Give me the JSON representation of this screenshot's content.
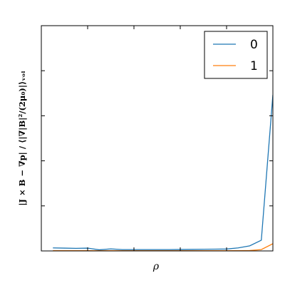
{
  "chart_data": {
    "type": "line",
    "title": "",
    "xlabel": "ρ",
    "ylabel": "|J × B − ∇p| / ⟨|∇|B|²/(2μ₀)|⟩ᵥₒₗ",
    "xlim": [
      0,
      1
    ],
    "ylim": [
      0,
      1
    ],
    "grid": false,
    "legend_position": "top-right",
    "series": [
      {
        "name": "0",
        "color": "#1f77b4",
        "x": [
          0.05,
          0.1,
          0.15,
          0.2,
          0.25,
          0.3,
          0.35,
          0.4,
          0.45,
          0.5,
          0.55,
          0.6,
          0.65,
          0.7,
          0.75,
          0.8,
          0.85,
          0.9,
          0.95,
          1.0
        ],
        "y": [
          0.0135,
          0.0125,
          0.0115,
          0.0125,
          0.005,
          0.009,
          0.006,
          0.006,
          0.006,
          0.006,
          0.006,
          0.0065,
          0.007,
          0.0075,
          0.008,
          0.0085,
          0.0135,
          0.0225,
          0.0475,
          0.693
        ]
      },
      {
        "name": "1",
        "color": "#ff7f0e",
        "x": [
          0.05,
          0.1,
          0.15,
          0.2,
          0.25,
          0.3,
          0.35,
          0.4,
          0.45,
          0.5,
          0.55,
          0.6,
          0.65,
          0.7,
          0.75,
          0.8,
          0.85,
          0.9,
          0.95,
          1.0
        ],
        "y": [
          0.001,
          0.001,
          0.001,
          0.001,
          0.001,
          0.001,
          0.001,
          0.001,
          0.001,
          0.001,
          0.001,
          0.001,
          0.001,
          0.001,
          0.001,
          0.001,
          0.001,
          0.002,
          0.006,
          0.032
        ]
      }
    ]
  }
}
